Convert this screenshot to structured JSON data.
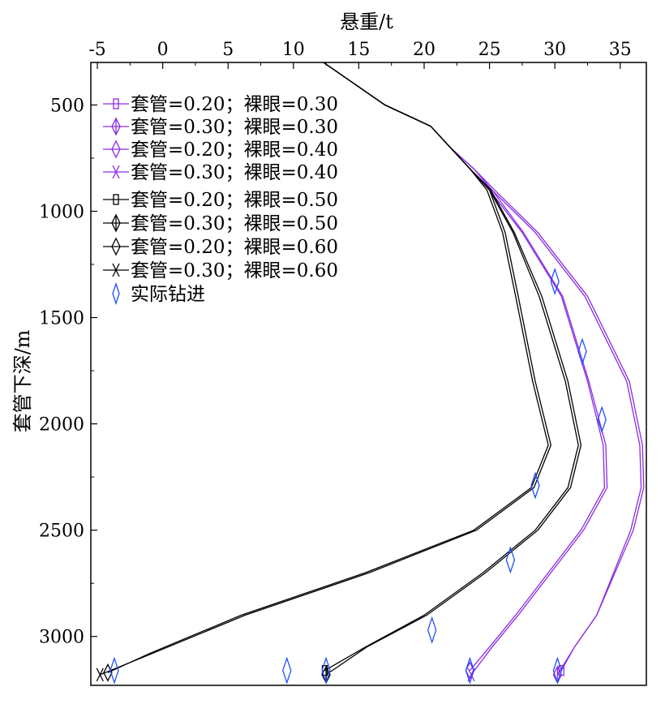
{
  "chart_data": {
    "type": "line",
    "xlabel": "悬重/t",
    "ylabel": "套管下深/m",
    "x_axis_position": "top",
    "y_axis_inverted": true,
    "xlim": [
      -5.5,
      37
    ],
    "ylim": [
      300,
      3230
    ],
    "x_ticks": [
      -5,
      0,
      5,
      10,
      15,
      20,
      25,
      30,
      35
    ],
    "x_tick_labels": [
      "-5",
      "0",
      "5",
      "10",
      "15",
      "20",
      "25",
      "30",
      "35"
    ],
    "y_ticks": [
      500,
      1000,
      1500,
      2000,
      2500,
      3000
    ],
    "y_tick_labels": [
      "500",
      "1000",
      "1500",
      "2000",
      "2500",
      "3000"
    ],
    "grid": false,
    "legend_position": "top-left",
    "series": [
      {
        "name": "套管=0.20；裸眼=0.30",
        "color": "#8a2be2",
        "marker": "square",
        "x": [
          12.3,
          17,
          20.5,
          22,
          23.8,
          25.2,
          28.5,
          32.3,
          35.5,
          36.5,
          36.6,
          35.8,
          34.5,
          33.2,
          31.5,
          30.5
        ],
        "y": [
          300,
          500,
          600,
          700,
          800,
          900,
          1100,
          1400,
          1800,
          2100,
          2300,
          2500,
          2700,
          2900,
          3050,
          3160
        ]
      },
      {
        "name": "套管=0.30；裸眼=0.30",
        "color": "#8a2be2",
        "marker": "diamond-line",
        "x": [
          12.3,
          17,
          20.5,
          22,
          23.8,
          25.4,
          28.7,
          32.5,
          35.7,
          36.7,
          36.8,
          36.0,
          34.6,
          33.2,
          31.5,
          30.2
        ],
        "y": [
          300,
          500,
          600,
          700,
          800,
          900,
          1100,
          1400,
          1800,
          2100,
          2300,
          2500,
          2700,
          2900,
          3050,
          3180
        ]
      },
      {
        "name": "套管=0.20；裸眼=0.40",
        "color": "#8a2be2",
        "marker": "diamond",
        "x": [
          12.3,
          17,
          20.5,
          22,
          23.5,
          25,
          27.5,
          30.5,
          32.5,
          33.7,
          33.8,
          32.0,
          29.5,
          27.0,
          25.0,
          23.5
        ],
        "y": [
          300,
          500,
          600,
          700,
          800,
          900,
          1100,
          1400,
          1800,
          2100,
          2300,
          2500,
          2700,
          2900,
          3050,
          3160
        ]
      },
      {
        "name": "套管=0.30；裸眼=0.40",
        "color": "#8a2be2",
        "marker": "x",
        "x": [
          12.3,
          17,
          20.5,
          22,
          23.5,
          25.2,
          27.6,
          30.6,
          32.6,
          33.9,
          34.0,
          32.2,
          29.7,
          27.2,
          25.2,
          23.6
        ],
        "y": [
          300,
          500,
          600,
          700,
          800,
          900,
          1100,
          1400,
          1800,
          2100,
          2300,
          2500,
          2700,
          2900,
          3050,
          3180
        ]
      },
      {
        "name": "套管=0.20；裸眼=0.50",
        "color": "#000000",
        "marker": "square",
        "x": [
          12.3,
          17,
          20.5,
          22,
          23.5,
          25,
          26.8,
          28.8,
          30.8,
          31.8,
          31.0,
          28.5,
          24.5,
          20.0,
          15.5,
          12.4
        ],
        "y": [
          300,
          500,
          600,
          700,
          800,
          900,
          1100,
          1400,
          1800,
          2100,
          2300,
          2500,
          2700,
          2900,
          3050,
          3160
        ]
      },
      {
        "name": "套管=0.30；裸眼=0.50",
        "color": "#000000",
        "marker": "diamond-line",
        "x": [
          12.3,
          17,
          20.5,
          22,
          23.5,
          25.1,
          26.9,
          29.0,
          31.0,
          32.0,
          31.2,
          28.7,
          24.7,
          20.2,
          15.6,
          12.5
        ],
        "y": [
          300,
          500,
          600,
          700,
          800,
          900,
          1100,
          1400,
          1800,
          2100,
          2300,
          2500,
          2700,
          2900,
          3050,
          3180
        ]
      },
      {
        "name": "套管=0.20；裸眼=0.60",
        "color": "#000000",
        "marker": "diamond",
        "x": [
          12.3,
          17,
          20.5,
          22,
          23.5,
          24.8,
          26.0,
          27.0,
          28.3,
          29.5,
          28.2,
          23.8,
          15.5,
          6.0,
          -1.0,
          -4.2
        ],
        "y": [
          300,
          500,
          600,
          700,
          800,
          900,
          1100,
          1400,
          1800,
          2100,
          2300,
          2500,
          2700,
          2900,
          3080,
          3170
        ]
      },
      {
        "name": "套管=0.30；裸眼=0.60",
        "color": "#000000",
        "marker": "x",
        "x": [
          12.3,
          17,
          20.5,
          22,
          23.5,
          25.0,
          26.2,
          27.2,
          28.5,
          29.7,
          28.4,
          24.0,
          15.8,
          6.3,
          -0.8,
          -4.8
        ],
        "y": [
          300,
          500,
          600,
          700,
          800,
          900,
          1100,
          1400,
          1800,
          2100,
          2300,
          2500,
          2700,
          2900,
          3080,
          3180
        ]
      }
    ],
    "scatter": {
      "name": "实际钻进",
      "color": "#1e50ff",
      "marker": "diamond",
      "x": [
        30.0,
        32.1,
        33.6,
        28.5,
        26.6,
        20.6,
        9.5,
        12.5,
        23.5,
        30.2,
        -3.7
      ],
      "y": [
        1330,
        1660,
        1980,
        2290,
        2640,
        2970,
        3160,
        3160,
        3160,
        3160,
        3160
      ]
    }
  }
}
